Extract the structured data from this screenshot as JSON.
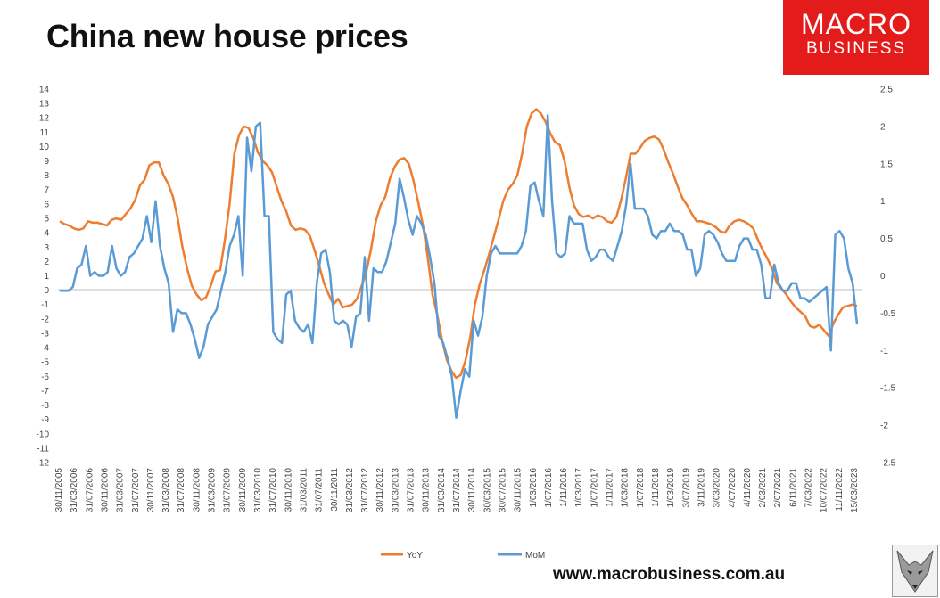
{
  "title": "China new house prices",
  "logo": {
    "line1": "MACRO",
    "line2": "BUSINESS"
  },
  "website": "www.macrobusiness.com.au",
  "colors": {
    "yoy": "#ed7d31",
    "mom": "#5b9bd5",
    "logo_bg": "#e31b1b"
  },
  "chart_data": {
    "type": "line",
    "title": "China new house prices",
    "x_tick_labels": [
      "30/11/2005",
      "31/03/2006",
      "31/07/2006",
      "30/11/2006",
      "31/03/2007",
      "31/07/2007",
      "30/11/2007",
      "31/03/2008",
      "31/07/2008",
      "30/11/2008",
      "31/03/2009",
      "31/07/2009",
      "30/11/2009",
      "31/03/2010",
      "31/07/2010",
      "30/11/2010",
      "31/03/2011",
      "31/07/2011",
      "30/11/2011",
      "31/03/2012",
      "31/07/2012",
      "30/11/2012",
      "31/03/2013",
      "31/07/2013",
      "30/11/2013",
      "31/03/2014",
      "31/07/2014",
      "30/11/2014",
      "30/03/2015",
      "30/07/2015",
      "30/11/2015",
      "1/03/2016",
      "1/07/2016",
      "1/11/2016",
      "1/03/2017",
      "1/07/2017",
      "1/11/2017",
      "1/03/2018",
      "1/07/2018",
      "1/11/2018",
      "1/03/2019",
      "3/07/2019",
      "3/11/2019",
      "3/03/2020",
      "4/07/2020",
      "4/11/2020",
      "2/03/2021",
      "2/07/2021",
      "6/11/2021",
      "7/03/2022",
      "10/07/2022",
      "11/11/2022",
      "15/03/2023"
    ],
    "y_left": {
      "min": -12,
      "max": 14,
      "step": 1
    },
    "y_right": {
      "ticks": [
        "2.5",
        "2",
        "1.5",
        "1",
        "0.5",
        "0",
        "-0.5",
        "-1",
        "-1.5",
        "-2",
        "-2.5"
      ],
      "min": -2.5,
      "max": 2.5
    },
    "legend_position": "bottom",
    "series": [
      {
        "name": "YoY",
        "axis": "left",
        "values": [
          4.8,
          4.6,
          4.5,
          4.3,
          4.2,
          4.3,
          4.8,
          4.7,
          4.7,
          4.6,
          4.5,
          4.9,
          5,
          4.9,
          5.3,
          5.7,
          6.3,
          7.3,
          7.7,
          8.7,
          8.9,
          8.9,
          8,
          7.4,
          6.5,
          5,
          3,
          1.5,
          0.3,
          -0.3,
          -0.7,
          -0.5,
          0.3,
          1.3,
          1.4,
          3.5,
          6,
          9.5,
          10.8,
          11.4,
          11.3,
          10.6,
          9.6,
          9,
          8.7,
          8.2,
          7.2,
          6.2,
          5.5,
          4.5,
          4.2,
          4.3,
          4.2,
          3.8,
          2.8,
          1.7,
          0.5,
          -0.3,
          -1,
          -0.6,
          -1.2,
          -1.1,
          -1,
          -0.6,
          0.3,
          1.3,
          2.9,
          4.8,
          5.9,
          6.5,
          7.8,
          8.6,
          9.1,
          9.2,
          8.8,
          7.6,
          6.1,
          4.5,
          2.3,
          -0.3,
          -1.7,
          -3.4,
          -4.8,
          -5.6,
          -6.1,
          -5.9,
          -4.9,
          -3.3,
          -1,
          0.4,
          1.4,
          2.5,
          3.7,
          4.9,
          6.2,
          7,
          7.4,
          8,
          9.5,
          11.4,
          12.3,
          12.6,
          12.3,
          11.7,
          10.9,
          10.3,
          10.1,
          9,
          7.2,
          5.9,
          5.3,
          5.1,
          5.2,
          5,
          5.2,
          5.1,
          4.8,
          4.7,
          5.1,
          6.3,
          7.8,
          9.5,
          9.5,
          9.9,
          10.4,
          10.6,
          10.7,
          10.5,
          9.8,
          8.9,
          8.1,
          7.2,
          6.4,
          5.9,
          5.3,
          4.8,
          4.8,
          4.7,
          4.6,
          4.4,
          4.1,
          4,
          4.5,
          4.8,
          4.9,
          4.8,
          4.6,
          4.3,
          3.5,
          2.8,
          2.2,
          1.5,
          0.5,
          0.1,
          -0.3,
          -0.8,
          -1.2,
          -1.5,
          -1.8,
          -2.5,
          -2.6,
          -2.4,
          -2.8,
          -3.2,
          -2.3,
          -1.7,
          -1.2,
          -1.1,
          -1,
          -1.1
        ]
      },
      {
        "name": "MoM",
        "axis": "right",
        "values": [
          -0.2,
          -0.2,
          -0.2,
          -0.15,
          0.1,
          0.15,
          0.4,
          0,
          0.05,
          0,
          0,
          0.05,
          0.4,
          0.1,
          0,
          0.05,
          0.25,
          0.3,
          0.4,
          0.5,
          0.8,
          0.45,
          1,
          0.4,
          0.1,
          -0.1,
          -0.75,
          -0.45,
          -0.5,
          -0.5,
          -0.65,
          -0.85,
          -1.1,
          -0.95,
          -0.65,
          -0.55,
          -0.45,
          -0.2,
          0.05,
          0.4,
          0.55,
          0.8,
          0,
          1.85,
          1.4,
          2,
          2.05,
          0.8,
          0.8,
          -0.75,
          -0.85,
          -0.9,
          -0.25,
          -0.2,
          -0.6,
          -0.7,
          -0.75,
          -0.65,
          -0.9,
          -0.1,
          0.3,
          0.35,
          0.05,
          -0.6,
          -0.65,
          -0.6,
          -0.65,
          -0.95,
          -0.55,
          -0.5,
          0.25,
          -0.6,
          0.1,
          0.05,
          0.05,
          0.2,
          0.45,
          0.7,
          1.3,
          1.05,
          0.75,
          0.55,
          0.8,
          0.7,
          0.55,
          0.25,
          -0.1,
          -0.8,
          -0.9,
          -1.1,
          -1.35,
          -1.9,
          -1.55,
          -1.25,
          -1.35,
          -0.6,
          -0.8,
          -0.55,
          0,
          0.3,
          0.4,
          0.3,
          0.3,
          0.3,
          0.3,
          0.3,
          0.4,
          0.6,
          1.2,
          1.25,
          1,
          0.8,
          2.15,
          1,
          0.3,
          0.25,
          0.3,
          0.8,
          0.7,
          0.7,
          0.7,
          0.35,
          0.2,
          0.25,
          0.35,
          0.35,
          0.25,
          0.2,
          0.4,
          0.6,
          0.95,
          1.5,
          0.9,
          0.9,
          0.9,
          0.8,
          0.55,
          0.5,
          0.6,
          0.6,
          0.7,
          0.6,
          0.6,
          0.55,
          0.35,
          0.35,
          0,
          0.1,
          0.55,
          0.6,
          0.55,
          0.45,
          0.3,
          0.2,
          0.2,
          0.2,
          0.4,
          0.5,
          0.5,
          0.35,
          0.35,
          0.15,
          -0.3,
          -0.3,
          0.15,
          -0.1,
          -0.2,
          -0.2,
          -0.1,
          -0.1,
          -0.3,
          -0.3,
          -0.35,
          -0.3,
          -0.25,
          -0.2,
          -0.15,
          -1,
          0.55,
          0.6,
          0.5,
          0.1,
          -0.1,
          -0.65
        ]
      }
    ]
  }
}
